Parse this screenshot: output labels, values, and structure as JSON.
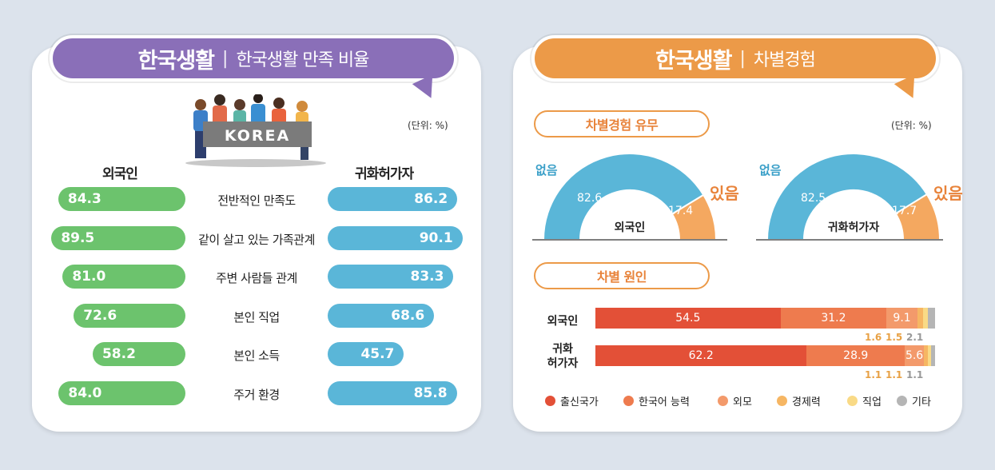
{
  "left": {
    "banner_title": "한국생활",
    "banner_sep": "|",
    "banner_subtitle": "한국생활 만족 비율",
    "unit": "(단위: %)",
    "illustration_text": "KOREA",
    "col_left": "외국인",
    "col_right": "귀화허가자"
  },
  "right": {
    "banner_title": "한국생활",
    "banner_sep": "|",
    "banner_subtitle": "차별경험",
    "unit": "(단위: %)",
    "section1": "차별경험 유무",
    "section2": "차별 원인"
  },
  "colors": {
    "green": "#6cc36d",
    "blue": "#5ab6d8",
    "none": "#5ab6d8",
    "yes": "#f4a860",
    "cause": [
      "#e35037",
      "#ee7b4e",
      "#f39a6b",
      "#f6b663",
      "#f9da86",
      "#b5b5b5"
    ]
  },
  "chart_data": [
    {
      "type": "bar",
      "categories": [
        "전반적인 만족도",
        "같이 살고 있는 가족관계",
        "주변 사람들 관계",
        "본인 직업",
        "본인 소득",
        "주거 환경"
      ],
      "series": [
        {
          "name": "외국인",
          "values": [
            "84.3",
            "89.5",
            "81.0",
            "72.6",
            "58.2",
            "84.0"
          ]
        },
        {
          "name": "귀화허가자",
          "values": [
            "86.2",
            "90.1",
            "83.3",
            "68.6",
            "45.7",
            "85.8"
          ]
        }
      ],
      "xlim": [
        0,
        100
      ]
    },
    {
      "type": "pie",
      "donuts": [
        {
          "center_label": "외국인",
          "labels": [
            "없음",
            "있음"
          ],
          "values": [
            "82.6",
            "17.4"
          ]
        },
        {
          "center_label": "귀화허가자",
          "labels": [
            "없음",
            "있음"
          ],
          "values": [
            "82.5",
            "17.7"
          ]
        }
      ]
    },
    {
      "type": "bar",
      "stacked": true,
      "categories": [
        "외국인",
        "귀화 허가자"
      ],
      "series": [
        {
          "name": "출신국가",
          "values": [
            "54.5",
            "62.2"
          ]
        },
        {
          "name": "한국어 능력",
          "values": [
            "31.2",
            "28.9"
          ]
        },
        {
          "name": "외모",
          "values": [
            "9.1",
            "5.6"
          ]
        },
        {
          "name": "경제력",
          "values": [
            "1.6",
            "1.1"
          ]
        },
        {
          "name": "직업",
          "values": [
            "1.5",
            "1.1"
          ]
        },
        {
          "name": "기타",
          "values": [
            "2.1",
            "1.1"
          ]
        }
      ]
    }
  ]
}
